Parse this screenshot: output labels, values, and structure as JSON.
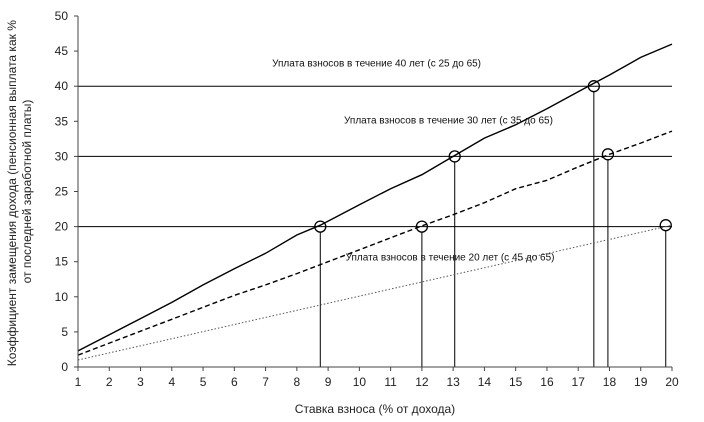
{
  "chart_data": {
    "type": "line",
    "xlabel": "Ставка взноса (% от дохода)",
    "ylabel_lines": [
      "Коэффициент замещения дохода (пенсионная выплата как %",
      "от последней заработной платы)"
    ],
    "xlim": [
      1,
      20
    ],
    "ylim": [
      0,
      50
    ],
    "x_ticks": [
      1,
      2,
      3,
      4,
      5,
      6,
      7,
      8,
      9,
      10,
      11,
      12,
      13,
      14,
      15,
      16,
      17,
      18,
      19,
      20
    ],
    "y_ticks": [
      0,
      5,
      10,
      15,
      20,
      25,
      30,
      35,
      40,
      45,
      50
    ],
    "grid": "horizontal lines at y = 20, 30, 40",
    "reference_lines_y": [
      20,
      30,
      40
    ],
    "series": [
      {
        "name": "Уплата взносов в течение 40 лет (с 25 до 65)",
        "style": "solid",
        "color": "#000000",
        "x": [
          1,
          2,
          3,
          4,
          5,
          6,
          7,
          8,
          8.75,
          10,
          11,
          12,
          13,
          14,
          15,
          16,
          17,
          17.45,
          18,
          19,
          20
        ],
        "y": [
          2.3,
          4.6,
          6.9,
          9.2,
          11.7,
          14.0,
          16.2,
          18.8,
          20.2,
          23.1,
          25.4,
          27.4,
          30.0,
          32.6,
          34.5,
          36.8,
          39.2,
          40.3,
          41.6,
          44.1,
          46.0
        ]
      },
      {
        "name": "Уплата взносов в течение 30 лет (с 35 до 65)",
        "style": "dashed",
        "color": "#000000",
        "x": [
          1,
          2,
          3,
          4,
          5,
          6,
          7,
          8,
          9,
          10,
          11,
          12,
          13,
          14,
          15,
          16,
          17,
          18,
          19,
          20
        ],
        "y": [
          1.7,
          3.4,
          5.1,
          6.8,
          8.5,
          10.2,
          11.7,
          13.3,
          15.0,
          16.7,
          18.4,
          20.1,
          21.7,
          23.4,
          25.4,
          26.6,
          28.5,
          30.3,
          31.9,
          33.6
        ]
      },
      {
        "name": "Уплата взносов в течение 20 лет (с 45 до 65)",
        "style": "dotted",
        "color": "#555555",
        "x": [
          1,
          20
        ],
        "y": [
          1.0,
          20.2
        ]
      }
    ],
    "markers": [
      {
        "x": 8.75,
        "y": 20,
        "drop": true
      },
      {
        "x": 12,
        "y": 20,
        "drop": true
      },
      {
        "x": 13.05,
        "y": 30,
        "drop": true
      },
      {
        "x": 17.5,
        "y": 40,
        "drop": true
      },
      {
        "x": 17.95,
        "y": 30.3,
        "drop": true
      },
      {
        "x": 19.8,
        "y": 20.2,
        "drop": true
      }
    ],
    "annotations": [
      {
        "text": "Уплата взносов в течение 40 лет (с 25 до 65)",
        "x": 10.55,
        "y": 42.8
      },
      {
        "text": "Уплата взносов в течение 30 лет (с 35 до 65)",
        "x": 12.85,
        "y": 34.7
      },
      {
        "text": "Уплата взносов в течение 20 лет (с 45 до 65)",
        "x": 12.9,
        "y": 15.2
      }
    ]
  }
}
